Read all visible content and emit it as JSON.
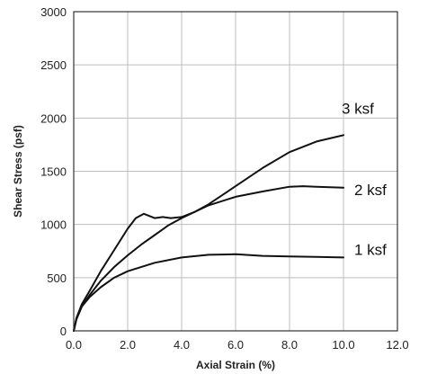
{
  "chart_data": {
    "type": "line",
    "xlabel": "Axial Strain (%)",
    "ylabel": "Shear Stress (psf)",
    "xlim": [
      0,
      12
    ],
    "ylim": [
      0,
      3000
    ],
    "x_ticks": [
      0,
      2,
      4,
      6,
      8,
      10,
      12
    ],
    "x_tick_labels": [
      "0.0",
      "2.0",
      "4.0",
      "6.0",
      "8.0",
      "10.0",
      "12.0"
    ],
    "y_ticks": [
      0,
      500,
      1000,
      1500,
      2000,
      2500,
      3000
    ],
    "y_tick_labels": [
      "0",
      "500",
      "1000",
      "1500",
      "2000",
      "2500",
      "3000"
    ],
    "grid": true,
    "legend": "inline labels at right end of each curve",
    "series": [
      {
        "name": "3 ksf",
        "points": [
          [
            0,
            0
          ],
          [
            0.1,
            120
          ],
          [
            0.3,
            250
          ],
          [
            0.6,
            380
          ],
          [
            1.0,
            560
          ],
          [
            1.5,
            760
          ],
          [
            2.0,
            960
          ],
          [
            2.3,
            1060
          ],
          [
            2.6,
            1100
          ],
          [
            2.8,
            1080
          ],
          [
            3.0,
            1060
          ],
          [
            3.3,
            1070
          ],
          [
            3.6,
            1060
          ],
          [
            4.0,
            1070
          ],
          [
            4.5,
            1120
          ],
          [
            5.0,
            1190
          ],
          [
            6.0,
            1360
          ],
          [
            7.0,
            1530
          ],
          [
            8.0,
            1680
          ],
          [
            9.0,
            1780
          ],
          [
            10.0,
            1840
          ]
        ]
      },
      {
        "name": "2 ksf",
        "points": [
          [
            0,
            0
          ],
          [
            0.1,
            110
          ],
          [
            0.3,
            230
          ],
          [
            0.6,
            340
          ],
          [
            1.0,
            470
          ],
          [
            1.5,
            600
          ],
          [
            2.0,
            710
          ],
          [
            2.5,
            810
          ],
          [
            3.0,
            900
          ],
          [
            3.5,
            990
          ],
          [
            4.0,
            1060
          ],
          [
            5.0,
            1180
          ],
          [
            6.0,
            1260
          ],
          [
            7.0,
            1310
          ],
          [
            8.0,
            1355
          ],
          [
            8.5,
            1360
          ],
          [
            9.0,
            1355
          ],
          [
            10.0,
            1345
          ]
        ]
      },
      {
        "name": "1 ksf",
        "points": [
          [
            0,
            0
          ],
          [
            0.1,
            110
          ],
          [
            0.3,
            230
          ],
          [
            0.6,
            320
          ],
          [
            1.0,
            410
          ],
          [
            1.5,
            500
          ],
          [
            2.0,
            560
          ],
          [
            3.0,
            640
          ],
          [
            4.0,
            690
          ],
          [
            5.0,
            715
          ],
          [
            6.0,
            720
          ],
          [
            7.0,
            705
          ],
          [
            8.0,
            700
          ],
          [
            9.0,
            695
          ],
          [
            10.0,
            690
          ]
        ]
      }
    ]
  }
}
